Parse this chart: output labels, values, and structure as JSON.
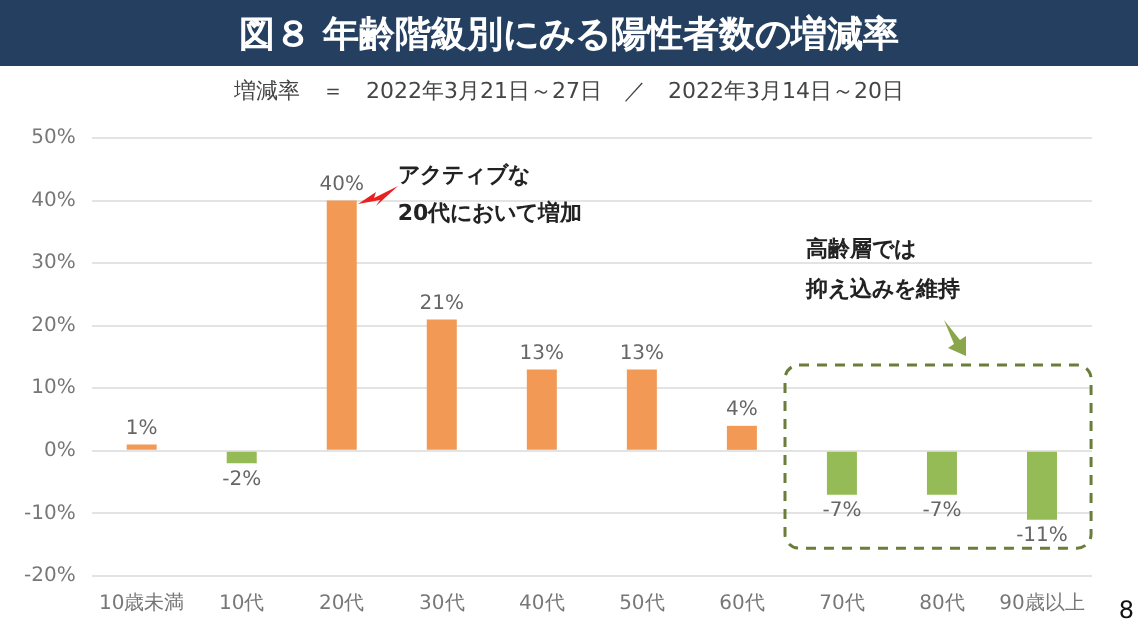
{
  "chart_data": {
    "type": "bar",
    "title": "図８ 年齢階級別にみる陽性者数の増減率",
    "subtitle": "増減率　＝　2022年3月21日～27日　／　2022年3月14日～20日",
    "categories": [
      "10歳未満",
      "10代",
      "20代",
      "30代",
      "40代",
      "50代",
      "60代",
      "70代",
      "80代",
      "90歳以上"
    ],
    "values": [
      1,
      -2,
      40,
      21,
      13,
      13,
      4,
      -7,
      -7,
      -11
    ],
    "colors": [
      "#f29a55",
      "#94bb55",
      "#f29a55",
      "#f29a55",
      "#f29a55",
      "#f29a55",
      "#f29a55",
      "#94bb55",
      "#94bb55",
      "#94bb55"
    ],
    "value_labels": [
      "1%",
      "-2%",
      "40%",
      "21%",
      "13%",
      "13%",
      "4%",
      "-7%",
      "-7%",
      "-11%"
    ],
    "ylim": [
      -20,
      50
    ],
    "yticks": [
      {
        "value": -20,
        "label": "-20%"
      },
      {
        "value": -10,
        "label": "-10%"
      },
      {
        "value": 0,
        "label": "0%"
      },
      {
        "value": 10,
        "label": "10%"
      },
      {
        "value": 20,
        "label": "20%"
      },
      {
        "value": 30,
        "label": "30%"
      },
      {
        "value": 40,
        "label": "40%"
      },
      {
        "value": 50,
        "label": "50%"
      }
    ],
    "grid": "y",
    "legend": false,
    "annotations": [
      "アクティブな",
      "20代において増加",
      "高齢層では",
      "抑え込みを維持",
      "8"
    ]
  }
}
